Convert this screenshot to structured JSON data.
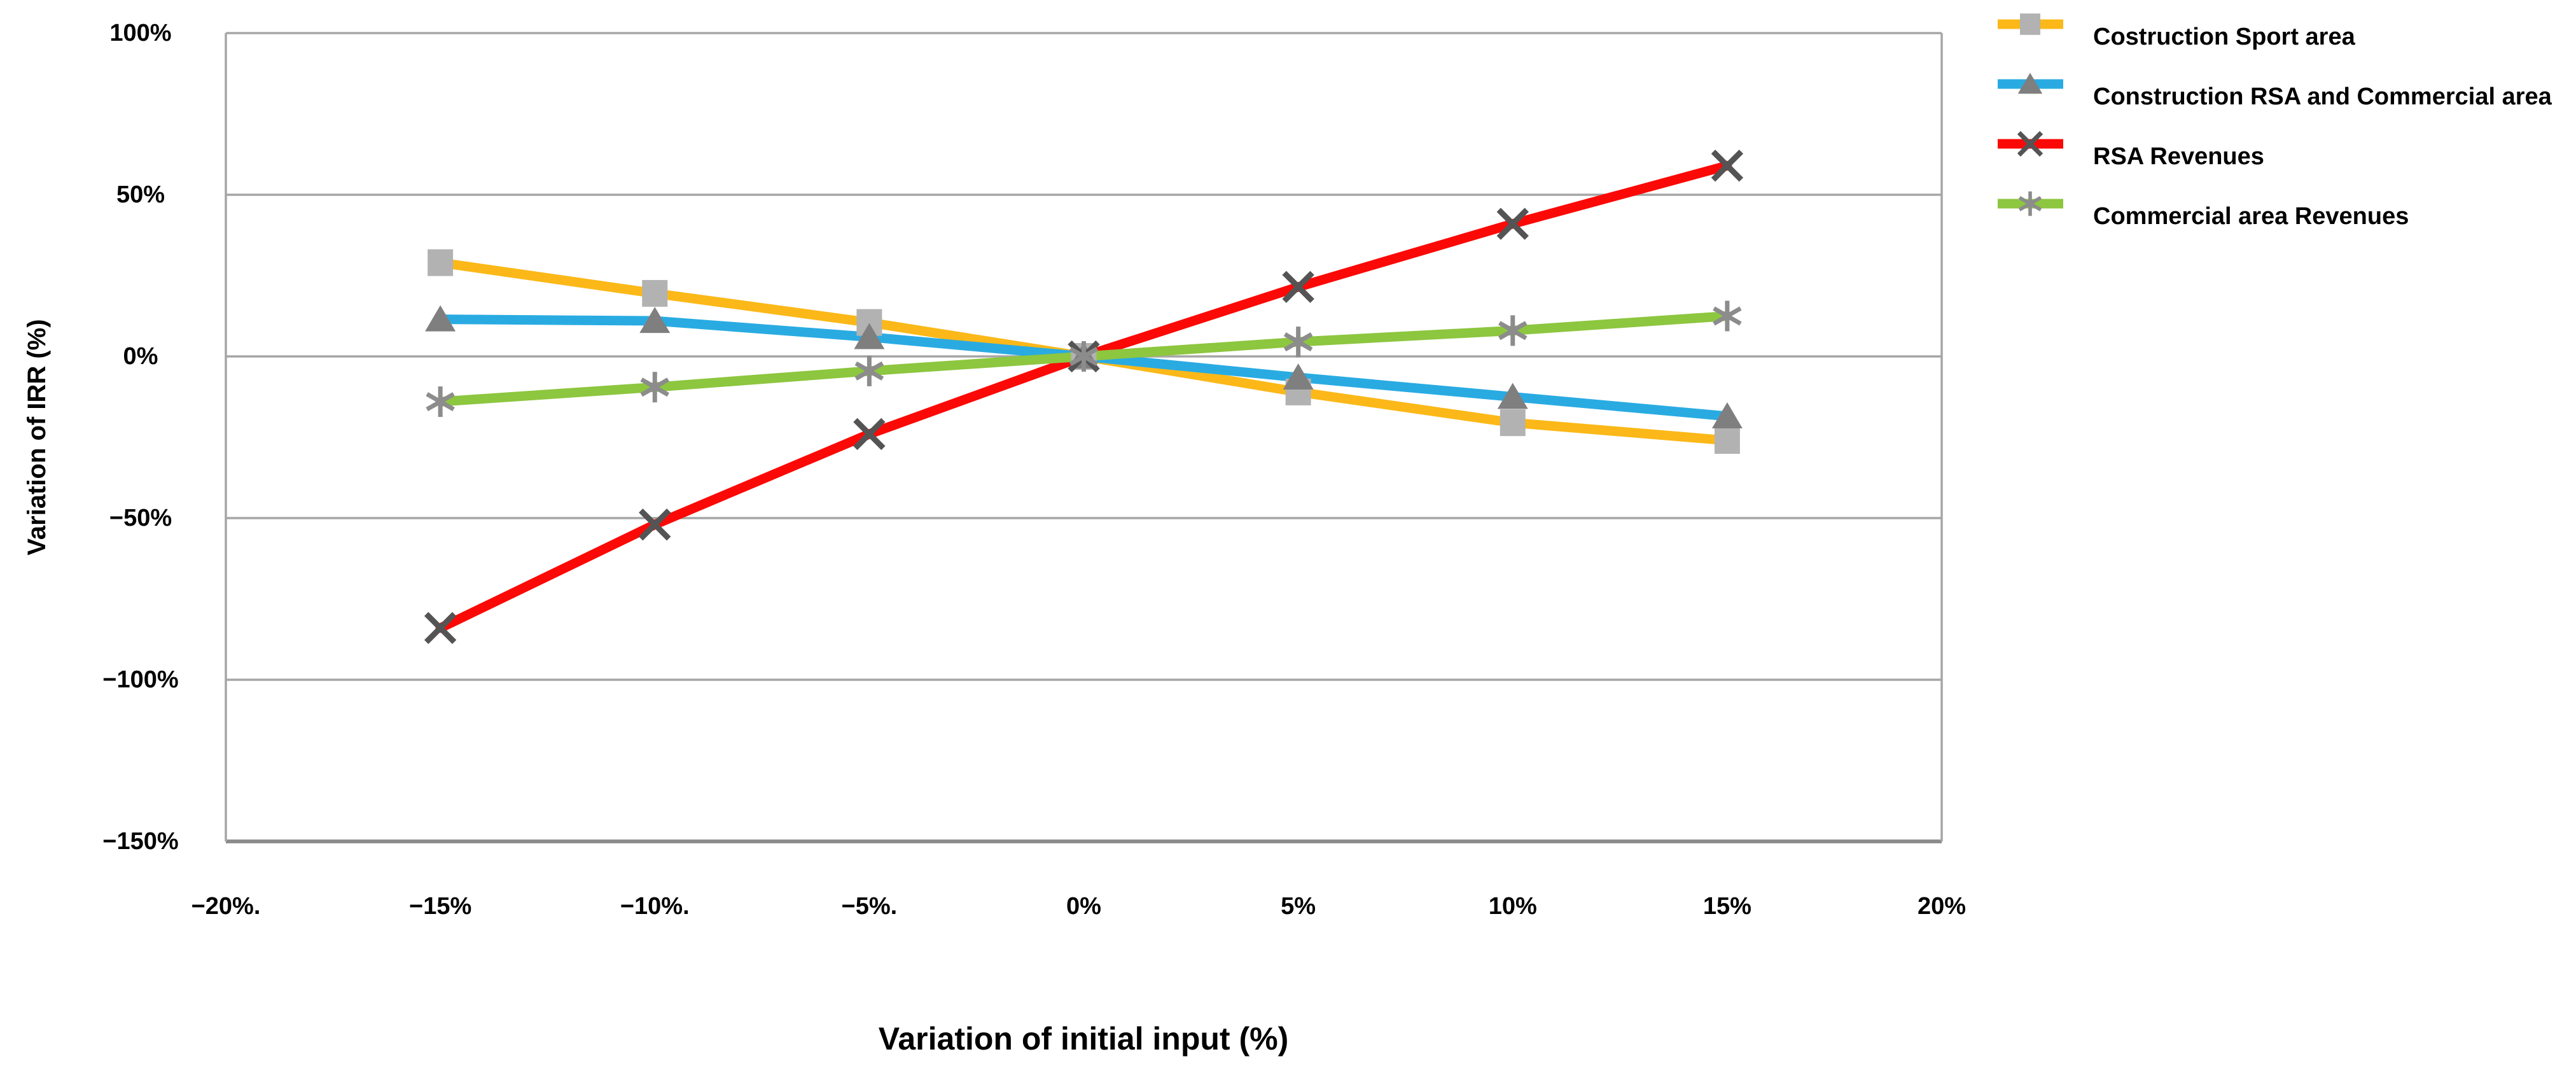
{
  "chart_data": {
    "type": "line",
    "x_axis": {
      "title": "Variation of initial input (%)",
      "range": [
        -20,
        20
      ],
      "tick_values": [
        -20,
        -15,
        -10,
        -5,
        0,
        5,
        10,
        15,
        20
      ],
      "tick_labels": [
        "−20%.",
        "−15%",
        "−10%.",
        "−5%.",
        "0%",
        "5%",
        "10%",
        "15%",
        "20%"
      ]
    },
    "y_axis": {
      "title": "Variation of IRR (%)",
      "range": [
        -150,
        100
      ],
      "tick_values": [
        100,
        50,
        0,
        -50,
        -100,
        -150
      ],
      "tick_labels": [
        "100%",
        "50%",
        "0%",
        "−50%",
        "−100%",
        "−150%"
      ]
    },
    "grid": "horizontal",
    "legend_position": "top-right",
    "x": [
      -15,
      -10,
      -5,
      0,
      5,
      10,
      15
    ],
    "series": [
      {
        "name": "Costruction Sport area",
        "color": "#FBB818",
        "marker": "square",
        "marker_color": "#B2B2B2",
        "values": [
          29,
          19.5,
          10.5,
          0,
          -11,
          -20.5,
          -26
        ]
      },
      {
        "name": "Construction RSA and Commercial area",
        "color": "#29ABE2",
        "marker": "triangle",
        "marker_color": "#7F7F7F",
        "values": [
          11.5,
          11,
          6,
          0,
          -6.5,
          -12.5,
          -18.5
        ]
      },
      {
        "name": "RSA Revenues",
        "color": "#FB0906",
        "marker": "x",
        "marker_color": "#545454",
        "values": [
          -84,
          -52,
          -24,
          0,
          21.5,
          41,
          59
        ]
      },
      {
        "name": "Commercial area Revenues",
        "color": "#8DC63F",
        "marker": "asterisk",
        "marker_color": "#8C8C8C",
        "values": [
          -14,
          -9.5,
          -4.5,
          0,
          4.5,
          8,
          12.5
        ]
      }
    ],
    "colors": {
      "grid": "#A6A6A6",
      "axis_bottom": "#8C8C8C",
      "text": "#000000",
      "background": "#FFFFFF"
    }
  }
}
